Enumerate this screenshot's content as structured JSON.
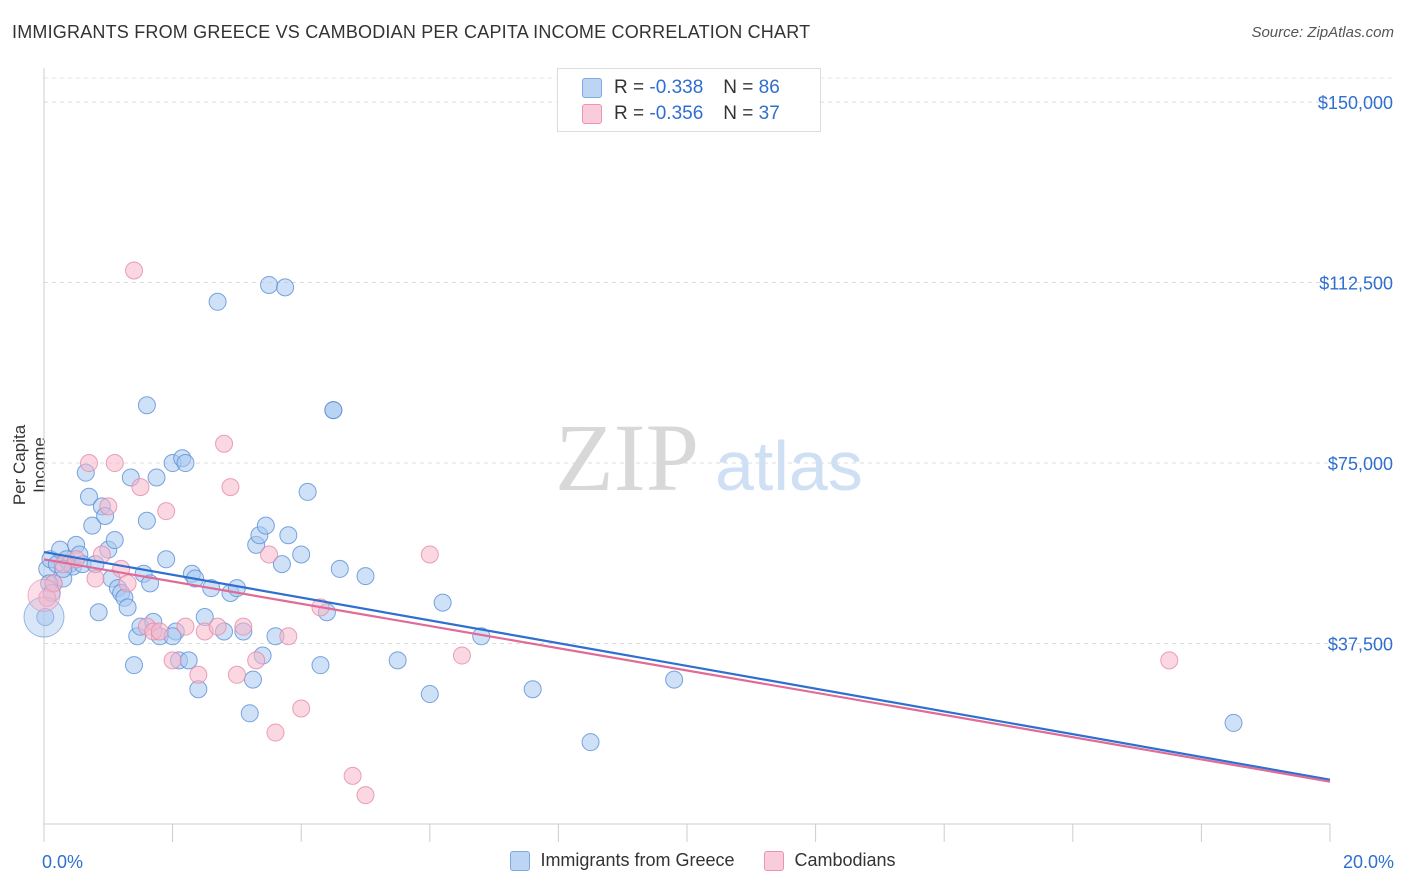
{
  "header": {
    "title": "IMMIGRANTS FROM GREECE VS CAMBODIAN PER CAPITA INCOME CORRELATION CHART",
    "source": "Source: ZipAtlas.com"
  },
  "watermark": {
    "zip": "ZIP",
    "atlas": "atlas"
  },
  "stats_legend": {
    "rows": [
      {
        "r_label": "R =",
        "r_value": "-0.338",
        "n_label": "N =",
        "n_value": "86",
        "color": "#a8c8f0"
      },
      {
        "r_label": "R =",
        "r_value": "-0.356",
        "n_label": "N =",
        "n_value": "37",
        "color": "#f7b6cb"
      }
    ]
  },
  "bottom_legend": {
    "items": [
      {
        "label": "Immigrants from Greece",
        "color": "#a8c8f0"
      },
      {
        "label": "Cambodians",
        "color": "#f7b6cb"
      }
    ]
  },
  "chart_data": {
    "type": "scatter",
    "title": "IMMIGRANTS FROM GREECE VS CAMBODIAN PER CAPITA INCOME CORRELATION CHART",
    "xlabel": "",
    "ylabel": "Per Capita Income",
    "xlim": [
      0,
      20
    ],
    "ylim": [
      0,
      155000
    ],
    "x_tick_labels": [
      "0.0%",
      "20.0%"
    ],
    "y_ticks": [
      37500,
      75000,
      112500,
      150000
    ],
    "y_tick_labels": [
      "$37,500",
      "$75,000",
      "$112,500",
      "$150,000"
    ],
    "grid": true,
    "series": [
      {
        "name": "Immigrants from Greece",
        "color": "#5b8fd6",
        "fill": "#a8c8f0",
        "trend": {
          "x": [
            0,
            20
          ],
          "y": [
            56500,
            9200
          ],
          "color": "#2f6fd0"
        },
        "points": [
          [
            0.05,
            53000
          ],
          [
            0.1,
            55000
          ],
          [
            0.15,
            50000
          ],
          [
            0.2,
            54000
          ],
          [
            0.25,
            57000
          ],
          [
            0.3,
            51000
          ],
          [
            0.35,
            55000
          ],
          [
            0.4,
            54000
          ],
          [
            0.45,
            53500
          ],
          [
            0.5,
            58000
          ],
          [
            0.55,
            56000
          ],
          [
            0.6,
            54000
          ],
          [
            0.65,
            73000
          ],
          [
            0.7,
            68000
          ],
          [
            0.75,
            62000
          ],
          [
            0.8,
            54000
          ],
          [
            0.85,
            44000
          ],
          [
            0.9,
            66000
          ],
          [
            0.95,
            64000
          ],
          [
            1.0,
            57000
          ],
          [
            1.05,
            51000
          ],
          [
            1.1,
            59000
          ],
          [
            1.15,
            49000
          ],
          [
            1.2,
            48000
          ],
          [
            1.25,
            47000
          ],
          [
            1.3,
            45000
          ],
          [
            1.35,
            72000
          ],
          [
            1.4,
            33000
          ],
          [
            1.45,
            39000
          ],
          [
            1.5,
            41000
          ],
          [
            1.55,
            52000
          ],
          [
            1.6,
            63000
          ],
          [
            1.65,
            50000
          ],
          [
            1.7,
            42000
          ],
          [
            1.75,
            72000
          ],
          [
            1.8,
            39000
          ],
          [
            1.9,
            55000
          ],
          [
            2.0,
            75000
          ],
          [
            2.05,
            40000
          ],
          [
            2.1,
            34000
          ],
          [
            2.15,
            76000
          ],
          [
            2.2,
            75000
          ],
          [
            2.25,
            34000
          ],
          [
            2.3,
            52000
          ],
          [
            2.35,
            51000
          ],
          [
            2.4,
            28000
          ],
          [
            2.5,
            43000
          ],
          [
            2.6,
            49000
          ],
          [
            2.7,
            108500
          ],
          [
            2.8,
            40000
          ],
          [
            2.9,
            48000
          ],
          [
            3.0,
            49000
          ],
          [
            3.1,
            40000
          ],
          [
            3.2,
            23000
          ],
          [
            3.25,
            30000
          ],
          [
            3.3,
            58000
          ],
          [
            3.35,
            60000
          ],
          [
            3.4,
            35000
          ],
          [
            3.45,
            62000
          ],
          [
            3.5,
            112000
          ],
          [
            3.6,
            39000
          ],
          [
            3.7,
            54000
          ],
          [
            3.75,
            111500
          ],
          [
            3.8,
            60000
          ],
          [
            4.0,
            56000
          ],
          [
            4.1,
            69000
          ],
          [
            4.3,
            33000
          ],
          [
            4.4,
            44000
          ],
          [
            4.5,
            86000
          ],
          [
            4.6,
            53000
          ],
          [
            4.5,
            86000
          ],
          [
            5.0,
            51500
          ],
          [
            5.5,
            34000
          ],
          [
            6.0,
            27000
          ],
          [
            6.2,
            46000
          ],
          [
            6.8,
            39000
          ],
          [
            7.6,
            28000
          ],
          [
            8.5,
            17000
          ],
          [
            9.8,
            30000
          ],
          [
            18.5,
            21000
          ],
          [
            0.02,
            43000
          ],
          [
            0.08,
            50000
          ],
          [
            0.12,
            48000
          ],
          [
            2.0,
            39000
          ],
          [
            1.6,
            87000
          ],
          [
            0.3,
            53000
          ]
        ]
      },
      {
        "name": "Cambodians",
        "color": "#e58aa8",
        "fill": "#f7b6cb",
        "trend": {
          "x": [
            0,
            20
          ],
          "y": [
            55000,
            8800
          ],
          "color": "#e06b96"
        },
        "points": [
          [
            0.05,
            47000
          ],
          [
            0.15,
            50000
          ],
          [
            0.3,
            54000
          ],
          [
            0.5,
            55000
          ],
          [
            0.7,
            75000
          ],
          [
            0.8,
            51000
          ],
          [
            0.9,
            56000
          ],
          [
            1.0,
            66000
          ],
          [
            1.1,
            75000
          ],
          [
            1.2,
            53000
          ],
          [
            1.3,
            50000
          ],
          [
            1.4,
            115000
          ],
          [
            1.5,
            70000
          ],
          [
            1.6,
            41000
          ],
          [
            1.7,
            40000
          ],
          [
            1.8,
            40000
          ],
          [
            1.9,
            65000
          ],
          [
            2.0,
            34000
          ],
          [
            2.2,
            41000
          ],
          [
            2.4,
            31000
          ],
          [
            2.5,
            40000
          ],
          [
            2.7,
            41000
          ],
          [
            2.8,
            79000
          ],
          [
            2.9,
            70000
          ],
          [
            3.0,
            31000
          ],
          [
            3.1,
            41000
          ],
          [
            3.3,
            34000
          ],
          [
            3.5,
            56000
          ],
          [
            3.6,
            19000
          ],
          [
            3.8,
            39000
          ],
          [
            4.0,
            24000
          ],
          [
            4.3,
            45000
          ],
          [
            4.8,
            10000
          ],
          [
            5.0,
            6000
          ],
          [
            6.0,
            56000
          ],
          [
            6.5,
            35000
          ],
          [
            17.5,
            34000
          ]
        ]
      }
    ]
  }
}
